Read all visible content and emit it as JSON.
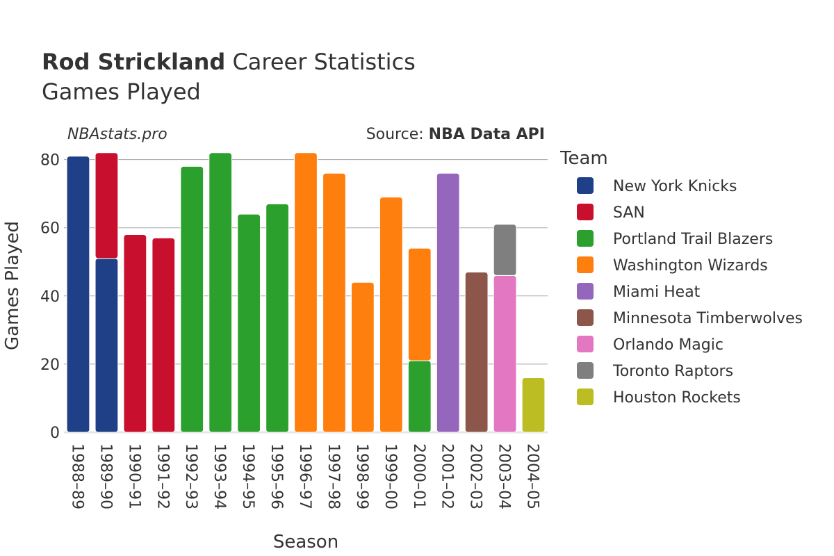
{
  "chart_data": {
    "type": "bar",
    "stacked": true,
    "title_bold": "Rod Strickland",
    "title_rest": " Career Statistics",
    "subtitle": "Games Played",
    "watermark": "NBAstats.pro",
    "source_prefix": "Source: ",
    "source_bold": "NBA Data API",
    "xlabel": "Season",
    "ylabel": "Games Played",
    "ylim": [
      0,
      84
    ],
    "yticks": [
      0,
      20,
      40,
      60,
      80
    ],
    "grid": true,
    "legend_title": "Team",
    "legend_position": "right",
    "categories": [
      "1988–89",
      "1989–90",
      "1990–91",
      "1991–92",
      "1992–93",
      "1993–94",
      "1994–95",
      "1995–96",
      "1996–97",
      "1997–98",
      "1998–99",
      "1999–00",
      "2000–01",
      "2001–02",
      "2002–03",
      "2003–04",
      "2004–05"
    ],
    "series": [
      {
        "name": "New York Knicks",
        "color": "#1f3f86",
        "values": [
          81,
          51,
          0,
          0,
          0,
          0,
          0,
          0,
          0,
          0,
          0,
          0,
          0,
          0,
          0,
          0,
          0
        ]
      },
      {
        "name": "SAN",
        "color": "#c8102e",
        "values": [
          0,
          31,
          58,
          57,
          0,
          0,
          0,
          0,
          0,
          0,
          0,
          0,
          0,
          0,
          0,
          0,
          0
        ]
      },
      {
        "name": "Portland Trail Blazers",
        "color": "#2ca02c",
        "values": [
          0,
          0,
          0,
          0,
          78,
          82,
          64,
          67,
          0,
          0,
          0,
          0,
          21,
          0,
          0,
          0,
          0
        ]
      },
      {
        "name": "Washington Wizards",
        "color": "#ff7f0e",
        "values": [
          0,
          0,
          0,
          0,
          0,
          0,
          0,
          0,
          82,
          76,
          44,
          69,
          33,
          0,
          0,
          0,
          0
        ]
      },
      {
        "name": "Miami Heat",
        "color": "#9467bd",
        "values": [
          0,
          0,
          0,
          0,
          0,
          0,
          0,
          0,
          0,
          0,
          0,
          0,
          0,
          76,
          0,
          0,
          0
        ]
      },
      {
        "name": "Minnesota Timberwolves",
        "color": "#8c564b",
        "values": [
          0,
          0,
          0,
          0,
          0,
          0,
          0,
          0,
          0,
          0,
          0,
          0,
          0,
          0,
          47,
          0,
          0
        ]
      },
      {
        "name": "Orlando Magic",
        "color": "#e377c2",
        "values": [
          0,
          0,
          0,
          0,
          0,
          0,
          0,
          0,
          0,
          0,
          0,
          0,
          0,
          0,
          0,
          46,
          0
        ]
      },
      {
        "name": "Toronto Raptors",
        "color": "#7f7f7f",
        "values": [
          0,
          0,
          0,
          0,
          0,
          0,
          0,
          0,
          0,
          0,
          0,
          0,
          0,
          0,
          0,
          15,
          0
        ]
      },
      {
        "name": "Houston Rockets",
        "color": "#bcbd22",
        "values": [
          0,
          0,
          0,
          0,
          0,
          0,
          0,
          0,
          0,
          0,
          0,
          0,
          0,
          0,
          0,
          0,
          16
        ]
      }
    ]
  }
}
